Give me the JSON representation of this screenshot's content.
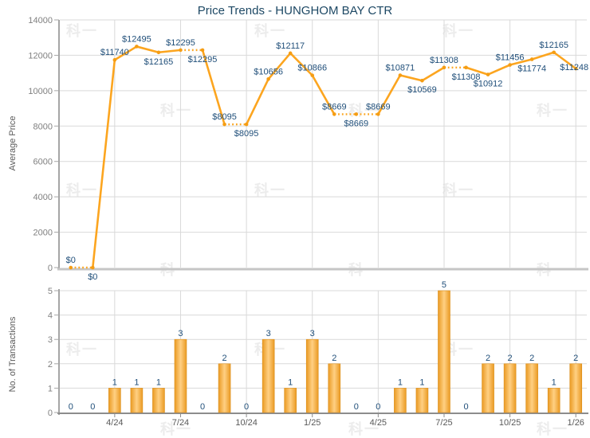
{
  "title": "Price Trends - HUNGHOM BAY CTR",
  "watermark": {
    "text": "科一"
  },
  "colors": {
    "line": "#FCA51F",
    "marker": "#F59D13",
    "bar_edge": "#EA9A23",
    "bar_center": "#FFD083",
    "bar_border": "#DB8E1A",
    "data_label": "#1F4E79",
    "title_text": "#1D4864",
    "axis_tick_text": "#808080",
    "date_tick_text": "#595959",
    "gridline": "#D9D9D9",
    "y_axis": "#A6A6A6",
    "price_x_axis": "#C6C6C6",
    "trans_x_axis": "#8C8C8C"
  },
  "chart_data": [
    {
      "type": "line",
      "title": "Price Trends - HUNGHOM BAY CTR",
      "ylabel": "Average Price",
      "ylim": [
        0,
        14000
      ],
      "yticks": [
        0,
        2000,
        4000,
        6000,
        8000,
        10000,
        12000,
        14000
      ],
      "grid": true,
      "legend": "none",
      "line_color": "#FCA51F",
      "label_color": "#1F4E79",
      "points": [
        {
          "value": 0,
          "label": "$0",
          "label_pos": "above",
          "dotted_to_next": true
        },
        {
          "value": 0,
          "label": "$0",
          "label_pos": "below",
          "dotted_to_next": false
        },
        {
          "value": 11740,
          "label": "$11740",
          "label_pos": "above",
          "dotted_to_next": false
        },
        {
          "value": 12495,
          "label": "$12495",
          "label_pos": "above",
          "dotted_to_next": false
        },
        {
          "value": 12165,
          "label": "$12165",
          "label_pos": "below",
          "dotted_to_next": false
        },
        {
          "value": 12295,
          "label": "$12295",
          "label_pos": "above",
          "dotted_to_next": true
        },
        {
          "value": 12295,
          "label": "$12295",
          "label_pos": "below",
          "dotted_to_next": false
        },
        {
          "value": 8095,
          "label": "$8095",
          "label_pos": "above",
          "dotted_to_next": true
        },
        {
          "value": 8095,
          "label": "$8095",
          "label_pos": "below",
          "dotted_to_next": false
        },
        {
          "value": 10656,
          "label": "$10656",
          "label_pos": "above",
          "dotted_to_next": false
        },
        {
          "value": 12117,
          "label": "$12117",
          "label_pos": "above",
          "dotted_to_next": false
        },
        {
          "value": 10866,
          "label": "$10866",
          "label_pos": "above",
          "dotted_to_next": false
        },
        {
          "value": 8669,
          "label": "$8669",
          "label_pos": "above",
          "dotted_to_next": true
        },
        {
          "value": 8669,
          "label": "$8669",
          "label_pos": "below",
          "dotted_to_next": true
        },
        {
          "value": 8669,
          "label": "$8669",
          "label_pos": "above",
          "dotted_to_next": false
        },
        {
          "value": 10871,
          "label": "$10871",
          "label_pos": "above",
          "dotted_to_next": false
        },
        {
          "value": 10569,
          "label": "$10569",
          "label_pos": "below",
          "dotted_to_next": false
        },
        {
          "value": 11308,
          "label": "$11308",
          "label_pos": "above",
          "dotted_to_next": true
        },
        {
          "value": 11308,
          "label": "$11308",
          "label_pos": "below",
          "dotted_to_next": false
        },
        {
          "value": 10912,
          "label": "$10912",
          "label_pos": "below",
          "dotted_to_next": false
        },
        {
          "value": 11456,
          "label": "$11456",
          "label_pos": "above",
          "dotted_to_next": false
        },
        {
          "value": 11774,
          "label": "$11774",
          "label_pos": "below",
          "dotted_to_next": false
        },
        {
          "value": 12165,
          "label": "$12165",
          "label_pos": "above",
          "dotted_to_next": false
        },
        {
          "value": 11248,
          "label": "$11248",
          "label_pos": "right",
          "dotted_to_next": false
        }
      ]
    },
    {
      "type": "bar",
      "ylabel": "No. of Transactions",
      "ylim": [
        0,
        5
      ],
      "yticks": [
        0,
        1,
        2,
        3,
        4,
        5
      ],
      "grid": true,
      "legend": "none",
      "bar_color": "#F5A61F",
      "label_color": "#1F4E79",
      "values": [
        0,
        0,
        1,
        1,
        1,
        3,
        0,
        2,
        0,
        3,
        1,
        3,
        2,
        0,
        0,
        1,
        1,
        5,
        0,
        2,
        2,
        2,
        1,
        2
      ],
      "xticks": [
        {
          "index": 2,
          "label": "4/24"
        },
        {
          "index": 5,
          "label": "7/24"
        },
        {
          "index": 8,
          "label": "10/24"
        },
        {
          "index": 11,
          "label": "1/25"
        },
        {
          "index": 14,
          "label": "4/25"
        },
        {
          "index": 17,
          "label": "7/25"
        },
        {
          "index": 20,
          "label": "10/25"
        },
        {
          "index": 23,
          "label": "1/26"
        }
      ]
    }
  ]
}
